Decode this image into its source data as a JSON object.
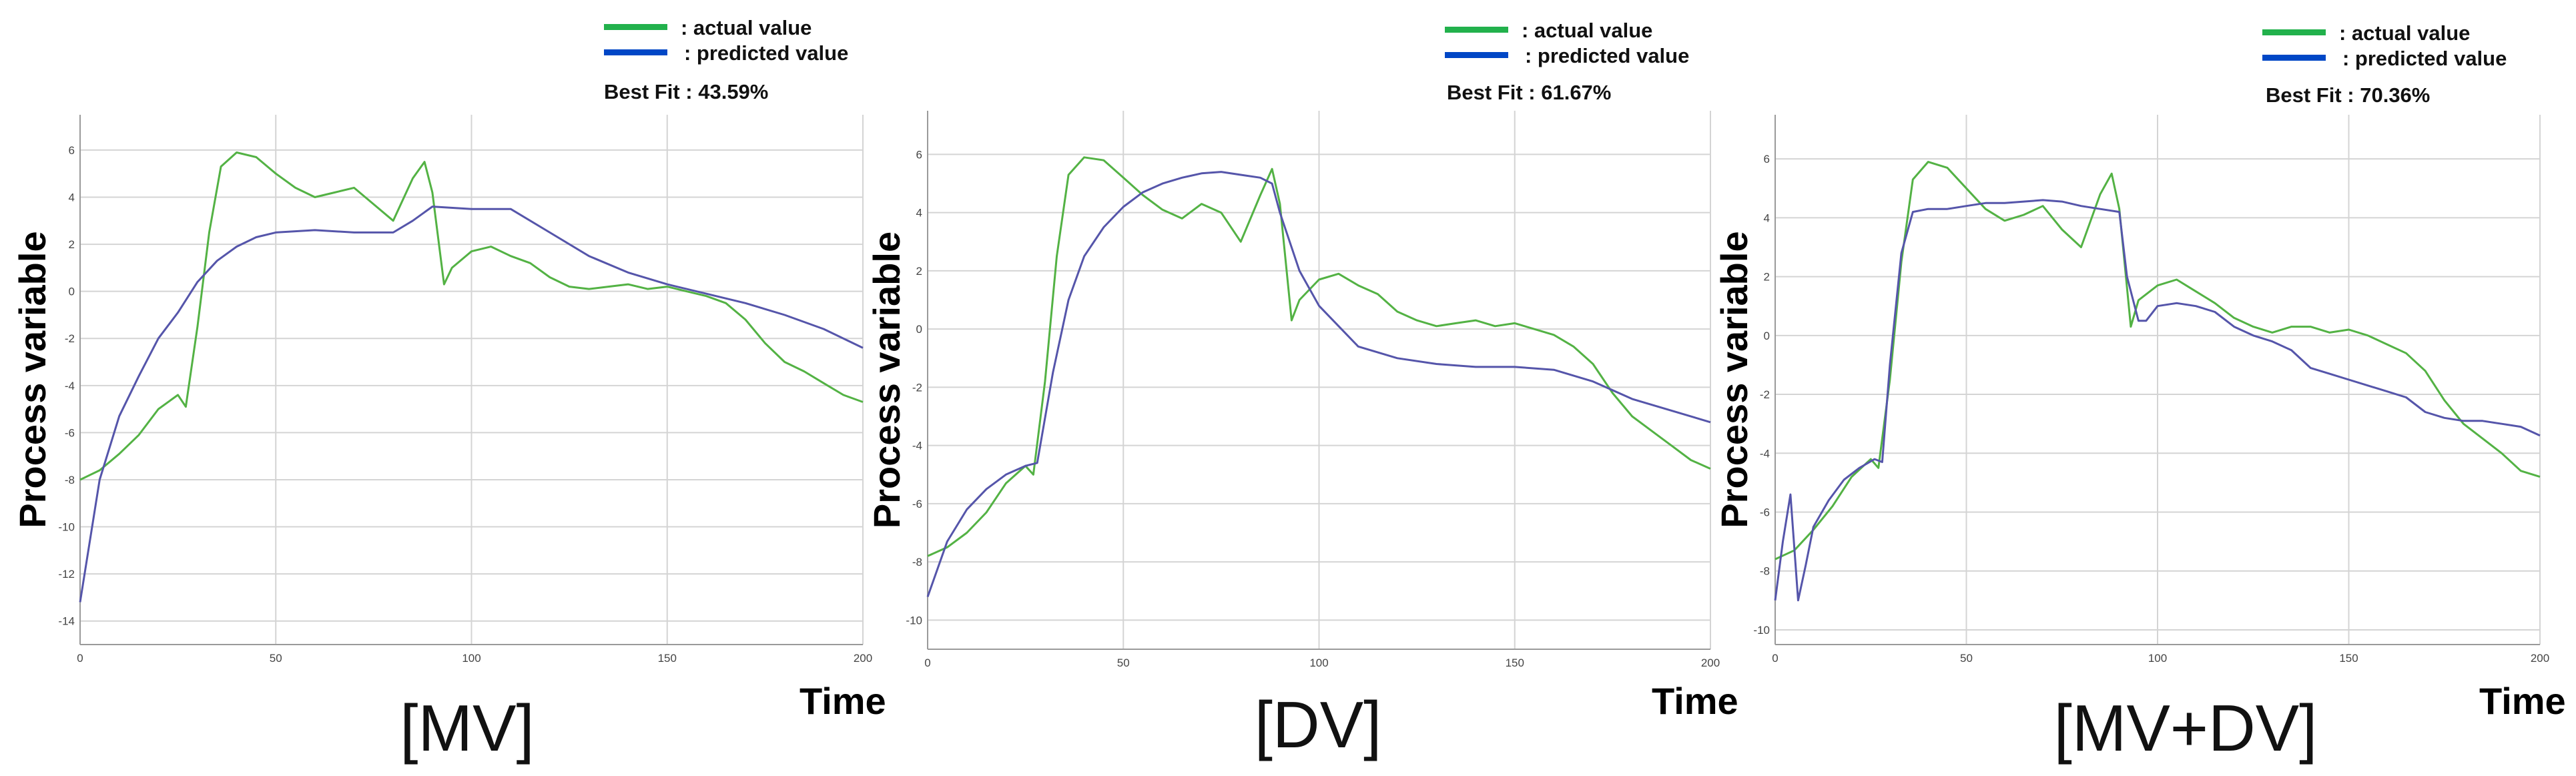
{
  "colors": {
    "actual": "#22b14c",
    "predicted": "#0047c6",
    "actual_line": "#53b244",
    "predicted_line": "#5555aa"
  },
  "chart_data": [
    {
      "type": "line",
      "caption": "[MV]",
      "xlabel": "Time",
      "ylabel": "Process variable",
      "best_fit": "Best Fit : 43.59%",
      "legend": [
        ": actual value",
        ": predicted value"
      ],
      "xlim": [
        0,
        200
      ],
      "ylim": [
        -15,
        7.5
      ],
      "xticks": [
        0,
        50,
        100,
        150,
        200
      ],
      "yticks": [
        -14,
        -12,
        -10,
        -8,
        -6,
        -4,
        -2,
        0,
        2,
        4,
        6
      ],
      "series": [
        {
          "name": "actual value",
          "key": "actual",
          "x": [
            0,
            5,
            10,
            15,
            20,
            25,
            27,
            30,
            33,
            36,
            40,
            45,
            50,
            55,
            60,
            65,
            70,
            75,
            80,
            85,
            88,
            90,
            93,
            95,
            100,
            105,
            110,
            115,
            120,
            125,
            130,
            135,
            140,
            145,
            150,
            155,
            160,
            165,
            170,
            175,
            180,
            185,
            190,
            195,
            200
          ],
          "y": [
            -8,
            -7.6,
            -6.9,
            -6.1,
            -5,
            -4.4,
            -4.9,
            -1.5,
            2.5,
            5.3,
            5.9,
            5.7,
            5,
            4.4,
            4,
            4.2,
            4.4,
            3.7,
            3,
            4.8,
            5.5,
            4.2,
            0.3,
            1,
            1.7,
            1.9,
            1.5,
            1.2,
            0.6,
            0.2,
            0.1,
            0.2,
            0.3,
            0.1,
            0.2,
            0,
            -0.2,
            -0.5,
            -1.2,
            -2.2,
            -3,
            -3.4,
            -3.9,
            -4.4,
            -4.7
          ]
        },
        {
          "name": "predicted value",
          "key": "predicted",
          "x": [
            0,
            5,
            10,
            15,
            20,
            25,
            30,
            35,
            40,
            45,
            50,
            60,
            70,
            80,
            85,
            90,
            100,
            110,
            120,
            130,
            140,
            150,
            160,
            170,
            180,
            190,
            200
          ],
          "y": [
            -13.2,
            -8,
            -5.3,
            -3.6,
            -2,
            -0.9,
            0.4,
            1.3,
            1.9,
            2.3,
            2.5,
            2.6,
            2.5,
            2.5,
            3,
            3.6,
            3.5,
            3.5,
            2.5,
            1.5,
            0.8,
            0.3,
            -0.1,
            -0.5,
            -1,
            -1.6,
            -2.4
          ]
        }
      ]
    },
    {
      "type": "line",
      "caption": "[DV]",
      "xlabel": "Time",
      "ylabel": "Process variable",
      "best_fit": "Best Fit : 61.67%",
      "legend": [
        ": actual value",
        ": predicted value"
      ],
      "xlim": [
        0,
        200
      ],
      "ylim": [
        -11,
        7.5
      ],
      "xticks": [
        0,
        50,
        100,
        150,
        200
      ],
      "yticks": [
        -10,
        -8,
        -6,
        -4,
        -2,
        0,
        2,
        4,
        6
      ],
      "series": [
        {
          "name": "actual value",
          "key": "actual",
          "x": [
            0,
            5,
            10,
            15,
            20,
            25,
            27,
            30,
            33,
            36,
            40,
            45,
            50,
            55,
            60,
            65,
            70,
            75,
            80,
            85,
            88,
            90,
            93,
            95,
            100,
            105,
            110,
            115,
            120,
            125,
            130,
            135,
            140,
            145,
            150,
            155,
            160,
            165,
            170,
            175,
            180,
            185,
            190,
            195,
            200
          ],
          "y": [
            -7.8,
            -7.5,
            -7,
            -6.3,
            -5.3,
            -4.7,
            -5,
            -1.8,
            2.5,
            5.3,
            5.9,
            5.8,
            5.2,
            4.6,
            4.1,
            3.8,
            4.3,
            4,
            3,
            4.6,
            5.5,
            4.3,
            0.3,
            1,
            1.7,
            1.9,
            1.5,
            1.2,
            0.6,
            0.3,
            0.1,
            0.2,
            0.3,
            0.1,
            0.2,
            0,
            -0.2,
            -0.6,
            -1.2,
            -2.2,
            -3,
            -3.5,
            -4,
            -4.5,
            -4.8
          ]
        },
        {
          "name": "predicted value",
          "key": "predicted",
          "x": [
            0,
            5,
            10,
            15,
            20,
            25,
            28,
            32,
            36,
            40,
            45,
            50,
            55,
            60,
            65,
            70,
            75,
            80,
            85,
            88,
            90,
            95,
            100,
            110,
            120,
            130,
            140,
            150,
            160,
            170,
            180,
            190,
            200
          ],
          "y": [
            -9.2,
            -7.3,
            -6.2,
            -5.5,
            -5,
            -4.7,
            -4.6,
            -1.5,
            1,
            2.5,
            3.5,
            4.2,
            4.7,
            5,
            5.2,
            5.35,
            5.4,
            5.3,
            5.2,
            5,
            4,
            2,
            0.8,
            -0.6,
            -1,
            -1.2,
            -1.3,
            -1.3,
            -1.4,
            -1.8,
            -2.4,
            -2.8,
            -3.2
          ]
        }
      ]
    },
    {
      "type": "line",
      "caption": "[MV+DV]",
      "xlabel": "Time",
      "ylabel": "Process variable",
      "best_fit": "Best Fit : 70.36%",
      "legend": [
        ": actual value",
        ": predicted value"
      ],
      "xlim": [
        0,
        200
      ],
      "ylim": [
        -10.5,
        7.5
      ],
      "xticks": [
        0,
        50,
        100,
        150,
        200
      ],
      "yticks": [
        -10,
        -8,
        -6,
        -4,
        -2,
        0,
        2,
        4,
        6
      ],
      "series": [
        {
          "name": "actual value",
          "key": "actual",
          "x": [
            0,
            5,
            10,
            15,
            20,
            25,
            27,
            30,
            33,
            36,
            40,
            45,
            50,
            55,
            60,
            65,
            70,
            75,
            80,
            85,
            88,
            90,
            93,
            95,
            100,
            105,
            110,
            115,
            120,
            125,
            130,
            135,
            140,
            145,
            150,
            155,
            160,
            165,
            170,
            175,
            180,
            185,
            190,
            195,
            200
          ],
          "y": [
            -7.6,
            -7.3,
            -6.6,
            -5.8,
            -4.8,
            -4.2,
            -4.5,
            -1.5,
            2.5,
            5.3,
            5.9,
            5.7,
            5,
            4.3,
            3.9,
            4.1,
            4.4,
            3.6,
            3,
            4.8,
            5.5,
            4.3,
            0.3,
            1.2,
            1.7,
            1.9,
            1.5,
            1.1,
            0.6,
            0.3,
            0.1,
            0.3,
            0.3,
            0.1,
            0.2,
            0,
            -0.3,
            -0.6,
            -1.2,
            -2.2,
            -3,
            -3.5,
            -4,
            -4.6,
            -4.8
          ]
        },
        {
          "name": "predicted value",
          "key": "predicted",
          "x": [
            0,
            2,
            4,
            6,
            8,
            10,
            14,
            18,
            22,
            26,
            28,
            30,
            33,
            36,
            40,
            45,
            50,
            55,
            60,
            65,
            70,
            75,
            80,
            85,
            90,
            92,
            95,
            97,
            100,
            105,
            110,
            115,
            120,
            125,
            130,
            135,
            140,
            145,
            150,
            155,
            160,
            165,
            170,
            175,
            180,
            185,
            190,
            195,
            200
          ],
          "y": [
            -9,
            -7,
            -5.4,
            -9,
            -7.8,
            -6.5,
            -5.6,
            -4.9,
            -4.5,
            -4.2,
            -4.3,
            -1,
            2.8,
            4.2,
            4.3,
            4.3,
            4.4,
            4.5,
            4.5,
            4.55,
            4.6,
            4.55,
            4.4,
            4.3,
            4.2,
            2,
            0.5,
            0.5,
            1,
            1.1,
            1,
            0.8,
            0.3,
            0,
            -0.2,
            -0.5,
            -1.1,
            -1.3,
            -1.5,
            -1.7,
            -1.9,
            -2.1,
            -2.6,
            -2.8,
            -2.9,
            -2.9,
            -3,
            -3.1,
            -3.4
          ]
        }
      ]
    }
  ]
}
